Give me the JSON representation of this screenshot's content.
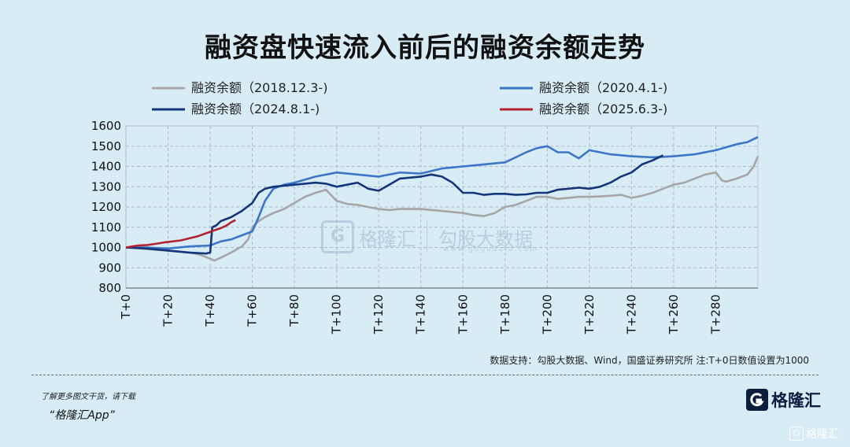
{
  "title": "融资盘快速流入前后的融资余额走势",
  "note": "数据支持：勾股大数据、Wind，国盛证券研究所 注:T+0日数值设置为1000",
  "promo": {
    "line1": "了解更多图文干货，请下载",
    "line2": "“格隆汇App”"
  },
  "brand": {
    "name": "格隆汇",
    "corner": "格隆汇",
    "icon": "g-logo-icon"
  },
  "watermark": {
    "left": "格隆汇",
    "right": "勾股大数据",
    "url": "www.gogudata.com"
  },
  "chart_data": {
    "type": "line",
    "x_ticks": [
      "T+0",
      "T+20",
      "T+40",
      "T+60",
      "T+80",
      "T+100",
      "T+120",
      "T+140",
      "T+160",
      "T+180",
      "T+200",
      "T+220",
      "T+240",
      "T+260",
      "T+280"
    ],
    "xlim": [
      0,
      300
    ],
    "ylim": [
      800,
      1600
    ],
    "y_ticks": [
      800,
      900,
      1000,
      1100,
      1200,
      1300,
      1400,
      1500,
      1600
    ],
    "grid": true,
    "legend_position": "top",
    "series": [
      {
        "name": "融资余额（2018.12.3-)",
        "color": "#a6a6a6",
        "x": [
          0,
          5,
          10,
          15,
          20,
          25,
          30,
          35,
          40,
          42,
          45,
          50,
          55,
          58,
          60,
          63,
          66,
          70,
          75,
          80,
          85,
          90,
          95,
          100,
          105,
          110,
          115,
          120,
          125,
          130,
          140,
          150,
          160,
          165,
          170,
          175,
          180,
          185,
          190,
          195,
          200,
          205,
          210,
          215,
          220,
          225,
          230,
          235,
          240,
          245,
          250,
          255,
          260,
          265,
          270,
          275,
          280,
          283,
          285,
          290,
          295,
          298,
          300
        ],
        "values": [
          1000,
          997,
          992,
          988,
          985,
          980,
          975,
          965,
          945,
          935,
          950,
          975,
          1005,
          1040,
          1100,
          1130,
          1150,
          1170,
          1190,
          1220,
          1250,
          1270,
          1285,
          1230,
          1215,
          1210,
          1200,
          1190,
          1185,
          1190,
          1190,
          1180,
          1170,
          1160,
          1155,
          1170,
          1200,
          1210,
          1230,
          1250,
          1250,
          1240,
          1245,
          1250,
          1250,
          1252,
          1255,
          1260,
          1245,
          1255,
          1270,
          1290,
          1310,
          1320,
          1340,
          1360,
          1370,
          1330,
          1325,
          1340,
          1360,
          1400,
          1450
        ]
      },
      {
        "name": "融资余额（2020.4.1-)",
        "color": "#3d76c6",
        "x": [
          0,
          10,
          20,
          30,
          40,
          45,
          50,
          55,
          60,
          63,
          66,
          70,
          75,
          80,
          85,
          90,
          95,
          100,
          110,
          120,
          130,
          140,
          150,
          160,
          170,
          180,
          190,
          195,
          200,
          205,
          210,
          215,
          220,
          225,
          230,
          240,
          250,
          260,
          270,
          280,
          290,
          295,
          300
        ],
        "values": [
          1000,
          1000,
          995,
          1005,
          1010,
          1030,
          1040,
          1060,
          1080,
          1150,
          1230,
          1290,
          1310,
          1320,
          1335,
          1350,
          1360,
          1370,
          1360,
          1350,
          1370,
          1365,
          1390,
          1400,
          1410,
          1420,
          1470,
          1490,
          1500,
          1470,
          1470,
          1440,
          1480,
          1470,
          1460,
          1450,
          1445,
          1450,
          1460,
          1480,
          1510,
          1520,
          1545
        ]
      },
      {
        "name": "融资余额（2024.8.1-)",
        "color": "#14357a",
        "x": [
          0,
          10,
          20,
          30,
          38,
          40,
          41,
          43,
          45,
          50,
          55,
          60,
          63,
          66,
          70,
          75,
          80,
          85,
          90,
          95,
          100,
          105,
          110,
          115,
          120,
          125,
          130,
          135,
          140,
          145,
          150,
          155,
          160,
          165,
          170,
          175,
          180,
          185,
          190,
          195,
          200,
          205,
          210,
          215,
          220,
          225,
          230,
          235,
          240,
          245,
          250,
          255
        ],
        "values": [
          1000,
          995,
          985,
          975,
          970,
          975,
          1100,
          1110,
          1130,
          1150,
          1180,
          1220,
          1270,
          1290,
          1300,
          1305,
          1310,
          1315,
          1320,
          1315,
          1300,
          1310,
          1320,
          1290,
          1280,
          1310,
          1340,
          1345,
          1350,
          1360,
          1350,
          1320,
          1270,
          1270,
          1260,
          1265,
          1265,
          1260,
          1262,
          1270,
          1270,
          1285,
          1290,
          1295,
          1290,
          1300,
          1320,
          1350,
          1370,
          1410,
          1430,
          1455
        ]
      },
      {
        "name": "融资余额（2025.6.3-)",
        "color": "#b32230",
        "x": [
          0,
          3,
          6,
          10,
          14,
          18,
          22,
          26,
          30,
          34,
          38,
          42,
          45,
          48,
          50,
          52
        ],
        "values": [
          1000,
          1005,
          1010,
          1012,
          1018,
          1025,
          1030,
          1035,
          1045,
          1055,
          1070,
          1085,
          1095,
          1110,
          1125,
          1135
        ]
      }
    ]
  }
}
